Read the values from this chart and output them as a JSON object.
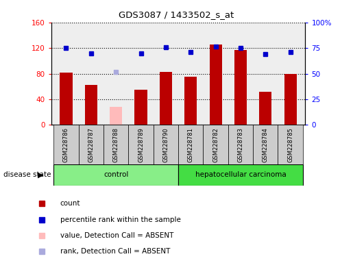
{
  "title": "GDS3087 / 1433502_s_at",
  "samples": [
    "GSM228786",
    "GSM228787",
    "GSM228788",
    "GSM228789",
    "GSM228790",
    "GSM228781",
    "GSM228782",
    "GSM228783",
    "GSM228784",
    "GSM228785"
  ],
  "bar_values": [
    82,
    62,
    null,
    55,
    83,
    75,
    125,
    117,
    52,
    80
  ],
  "absent_bar_value": 28,
  "absent_bar_index": 2,
  "absent_bar_color": "#ffbbbb",
  "bar_color": "#bb0000",
  "dot_values": [
    120,
    112,
    null,
    112,
    121,
    114,
    122,
    120,
    110,
    114
  ],
  "absent_dot_value": 83,
  "absent_dot_index": 2,
  "dot_color": "#0000cc",
  "absent_dot_color": "#aaaadd",
  "ylim_left": [
    0,
    160
  ],
  "ylim_right": [
    0,
    100
  ],
  "yticks_left": [
    0,
    40,
    80,
    120,
    160
  ],
  "ytick_labels_left": [
    "0",
    "40",
    "80",
    "120",
    "160"
  ],
  "yticks_right": [
    0,
    25,
    50,
    75,
    100
  ],
  "ytick_labels_right": [
    "0",
    "25",
    "50",
    "75",
    "100%"
  ],
  "control_label": "control",
  "cancer_label": "hepatocellular carcinoma",
  "disease_state_label": "disease state",
  "legend_entries": [
    {
      "label": "count",
      "color": "#bb0000"
    },
    {
      "label": "percentile rank within the sample",
      "color": "#0000cc"
    },
    {
      "label": "value, Detection Call = ABSENT",
      "color": "#ffbbbb"
    },
    {
      "label": "rank, Detection Call = ABSENT",
      "color": "#aaaadd"
    }
  ],
  "plot_bg": "#eeeeee",
  "label_bg": "#cccccc",
  "control_bg": "#88ee88",
  "cancer_bg": "#44dd44",
  "bar_width": 0.5,
  "n_control": 5,
  "n_cancer": 5
}
